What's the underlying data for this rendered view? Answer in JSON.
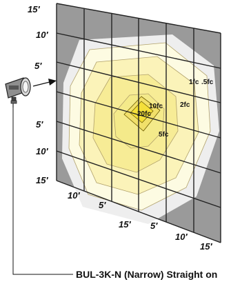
{
  "caption": "BUL-3K-N (Narrow) Straight on",
  "left_axis": {
    "labels": [
      "15′",
      "10′",
      "5′",
      "5′",
      "10′",
      "15′"
    ]
  },
  "bottom_axis": {
    "labels_left": [
      "10′",
      "5′",
      "15′"
    ],
    "labels_right": [
      "5′",
      "10′",
      "15′"
    ]
  },
  "isolines": [
    "20fc",
    "10fc",
    "5fc",
    "2fc",
    "1fc",
    ".5fc"
  ],
  "colors": {
    "background_panel": "#9a9a9a",
    "outer_glow": "#eeeeee",
    "ring_pale": "#fdfbe2",
    "ring_light": "#fbf3b9",
    "ring_mid": "#f7ec96",
    "center_yellow": "#f4df3a",
    "grid": "#222222",
    "fixture_body": "#8e8e8e"
  }
}
